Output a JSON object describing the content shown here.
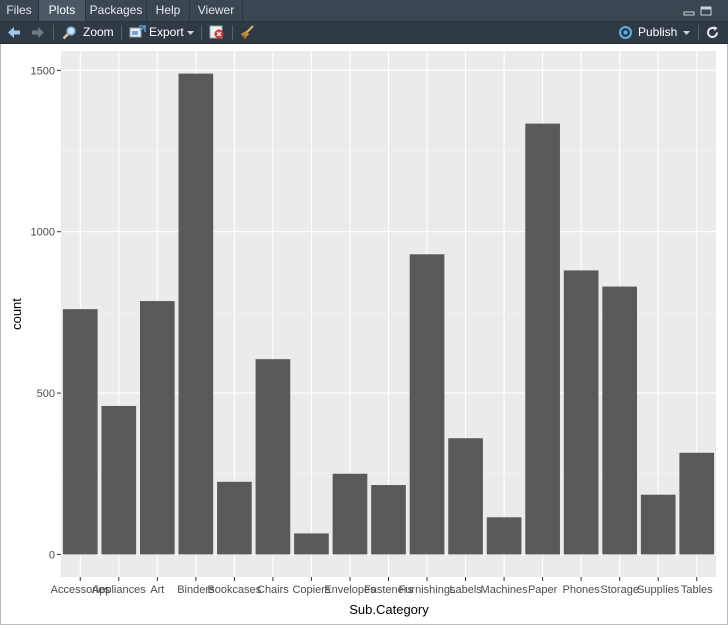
{
  "tabs": [
    {
      "label": "Files"
    },
    {
      "label": "Plots"
    },
    {
      "label": "Packages"
    },
    {
      "label": "Help"
    },
    {
      "label": "Viewer"
    }
  ],
  "active_tab": "Plots",
  "toolbar": {
    "zoom_label": "Zoom",
    "export_label": "Export",
    "publish_label": "Publish"
  },
  "icons": {
    "back": "arrow-left-icon",
    "forward": "arrow-right-icon",
    "zoom": "magnifier-icon",
    "export": "export-icon",
    "remove": "remove-plot-icon",
    "clear": "broom-icon",
    "publish": "publish-icon",
    "refresh": "refresh-icon",
    "minimize": "minimize-icon",
    "maximize": "maximize-icon"
  },
  "colors": {
    "panel_bg": "#ebebeb",
    "bar_fill": "#595959",
    "grid_major": "#ffffff",
    "tab_bar": "#3a4652",
    "toolbar": "#2f3a44"
  },
  "chart_data": {
    "type": "bar",
    "xlabel": "Sub.Category",
    "ylabel": "count",
    "categories": [
      "Accessories",
      "Appliances",
      "Art",
      "Binders",
      "Bookcases",
      "Chairs",
      "Copiers",
      "Envelopes",
      "Fasteners",
      "Furnishings",
      "Labels",
      "Machines",
      "Paper",
      "Phones",
      "Storage",
      "Supplies",
      "Tables"
    ],
    "values": [
      760,
      460,
      785,
      1490,
      225,
      605,
      65,
      250,
      215,
      930,
      360,
      115,
      1335,
      880,
      830,
      185,
      315
    ],
    "yticks": [
      0,
      500,
      1000,
      1500
    ],
    "ylim": [
      -70,
      1560
    ],
    "grid": true,
    "legend": "none"
  }
}
